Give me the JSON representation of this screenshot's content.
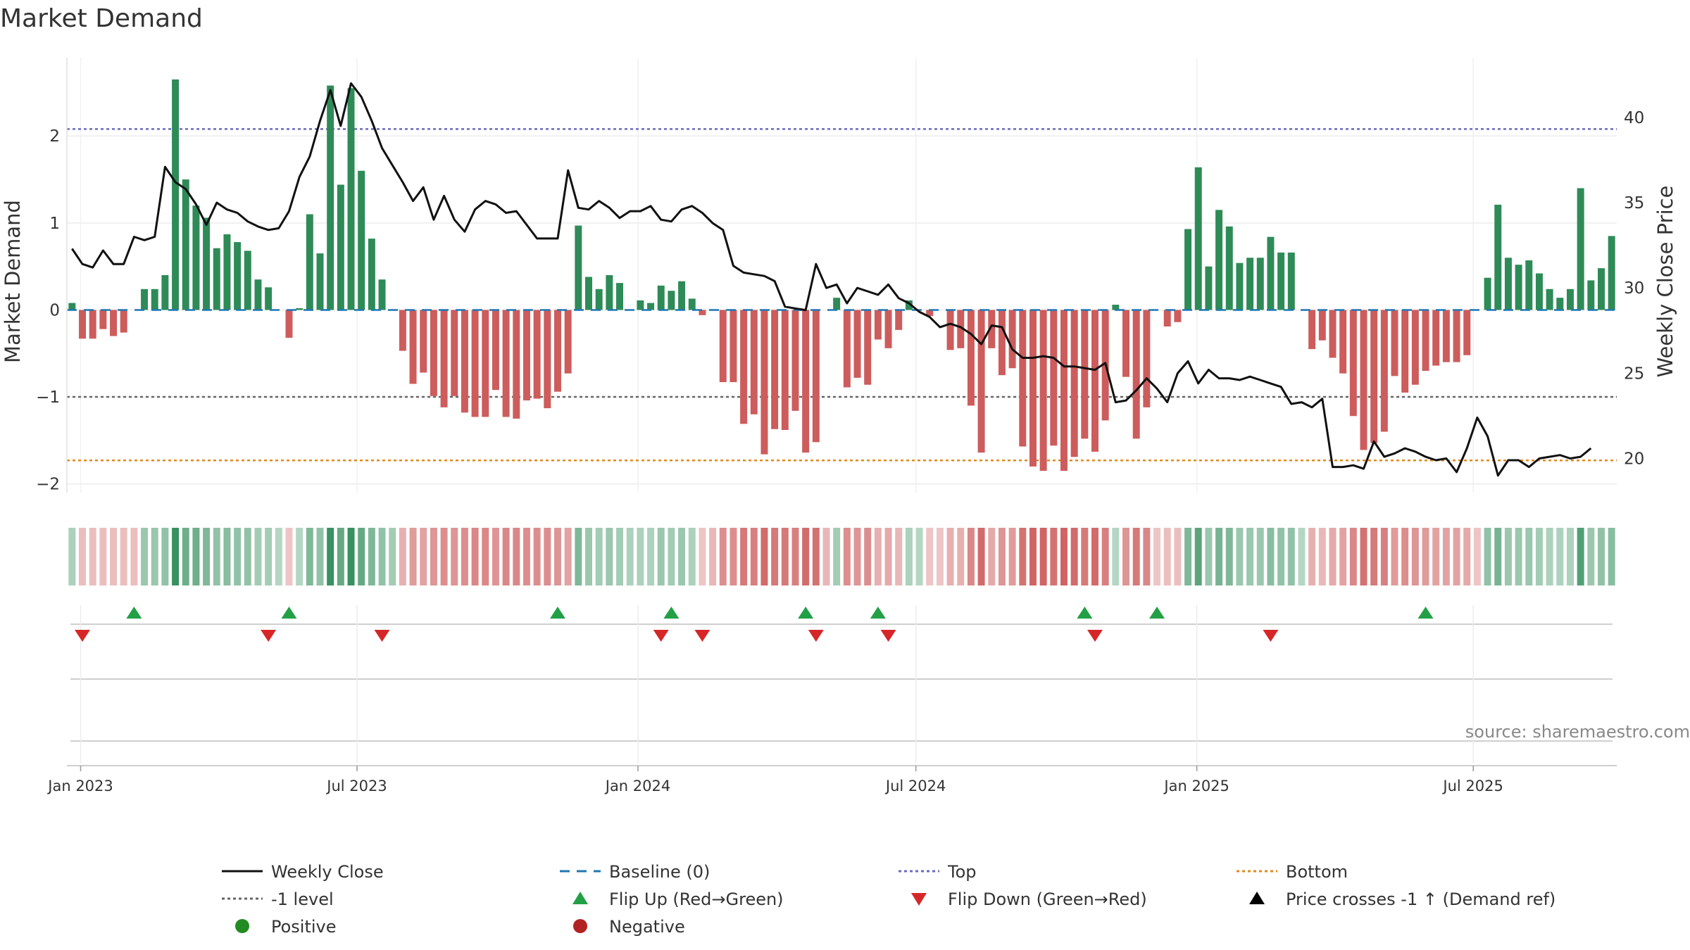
{
  "title": "Market Demand",
  "source": "source: sharemaestro.com",
  "colors": {
    "bar_positive": "#2e8b57",
    "bar_negative": "#cd5c5c",
    "price_line": "#111111",
    "baseline": "#1f77b4",
    "top_line": "#6b6bbf",
    "minus_one_line": "#666666",
    "bottom_line": "#e08a1e",
    "flip_up": "#22a046",
    "flip_down": "#d62728",
    "positive_dot": "#228b22",
    "negative_dot": "#b22222",
    "price_cross": "#000000"
  },
  "chart_data": {
    "type": "bar",
    "title": "Market Demand",
    "xlabel": "",
    "ylabel": "Market Demand",
    "y2label": "Weekly Close Price",
    "ylim": [
      -2.1,
      2.9
    ],
    "y2lim": [
      18,
      43.5
    ],
    "yticks": [
      "2",
      "1",
      "0",
      "−1",
      "−2"
    ],
    "yticks_values": [
      2,
      1,
      0,
      -1,
      -2
    ],
    "y2ticks": [
      "40",
      "35",
      "30",
      "25",
      "20"
    ],
    "y2ticks_values": [
      40,
      35,
      30,
      25,
      20
    ],
    "x_start": "2022-12-23",
    "x_end": "2025-10-03",
    "xtick_labels": [
      "Jan 2023",
      "Jul 2023",
      "Jan 2024",
      "Jul 2024",
      "Jan 2025",
      "Jul 2025"
    ],
    "xtick_dates": [
      "2023-01-01",
      "2023-07-01",
      "2024-01-01",
      "2024-07-01",
      "2025-01-01",
      "2025-07-01"
    ],
    "reference_lines": {
      "top": 2.08,
      "minus_one": -1.0,
      "bottom": -1.73,
      "baseline": 0
    },
    "series": [
      {
        "name": "Market Demand",
        "values": [
          0.08,
          -0.33,
          -0.33,
          -0.22,
          -0.3,
          -0.26,
          0.0,
          0.24,
          0.24,
          0.4,
          2.65,
          1.5,
          1.2,
          1.06,
          0.71,
          0.87,
          0.78,
          0.68,
          0.35,
          0.26,
          0.0,
          -0.32,
          0.02,
          1.1,
          0.65,
          2.58,
          1.44,
          2.55,
          1.6,
          0.82,
          0.35,
          0.0,
          -0.47,
          -0.85,
          -0.72,
          -0.99,
          -1.12,
          -0.99,
          -1.18,
          -1.23,
          -1.23,
          -0.92,
          -1.23,
          -1.25,
          -1.04,
          -1.02,
          -1.13,
          -0.94,
          -0.73,
          0.97,
          0.38,
          0.24,
          0.4,
          0.31,
          0.0,
          0.11,
          0.08,
          0.28,
          0.22,
          0.33,
          0.13,
          -0.06,
          0.0,
          -0.83,
          -0.83,
          -1.31,
          -1.2,
          -1.66,
          -1.37,
          -1.38,
          -1.16,
          -1.64,
          -1.52,
          0.0,
          0.14,
          -0.89,
          -0.78,
          -0.86,
          -0.34,
          -0.44,
          -0.23,
          0.11,
          0.0,
          -0.07,
          0.0,
          -0.46,
          -0.44,
          -1.1,
          -1.64,
          -0.44,
          -0.75,
          -0.67,
          -1.57,
          -1.8,
          -1.85,
          -1.56,
          -1.85,
          -1.69,
          -1.48,
          -1.63,
          -1.27,
          0.06,
          -0.77,
          -1.48,
          -1.12,
          0.0,
          -0.19,
          -0.14,
          0.93,
          1.64,
          0.5,
          1.15,
          0.96,
          0.54,
          0.6,
          0.6,
          0.84,
          0.66,
          0.66,
          0.0,
          -0.45,
          -0.35,
          -0.55,
          -0.73,
          -1.22,
          -1.61,
          -1.53,
          -1.4,
          -0.76,
          -0.95,
          -0.86,
          -0.7,
          -0.64,
          -0.6,
          -0.6,
          -0.52,
          0.0,
          0.37,
          1.21,
          0.6,
          0.52,
          0.57,
          0.42,
          0.24,
          0.14,
          0.24,
          1.4,
          0.34,
          0.48,
          0.85
        ]
      },
      {
        "name": "Weekly Close",
        "axis": "secondary",
        "values": [
          32.3,
          31.4,
          31.2,
          32.2,
          31.4,
          31.4,
          33.0,
          32.8,
          33.0,
          37.1,
          36.2,
          35.8,
          34.9,
          33.7,
          35.0,
          34.6,
          34.4,
          33.9,
          33.6,
          33.4,
          33.5,
          34.5,
          36.5,
          37.7,
          39.8,
          41.6,
          39.5,
          42.0,
          41.2,
          39.8,
          38.2,
          37.2,
          36.2,
          35.1,
          35.9,
          34.0,
          35.4,
          34.0,
          33.3,
          34.6,
          35.1,
          34.9,
          34.4,
          34.5,
          33.7,
          32.9,
          32.9,
          32.9,
          36.9,
          34.7,
          34.6,
          35.1,
          34.7,
          34.1,
          34.5,
          34.5,
          34.8,
          34.0,
          33.9,
          34.6,
          34.8,
          34.4,
          33.8,
          33.4,
          31.3,
          30.9,
          30.8,
          30.7,
          30.4,
          28.9,
          28.8,
          28.7,
          31.4,
          30.0,
          30.2,
          29.1,
          30.0,
          29.8,
          29.6,
          30.2,
          29.4,
          29.1,
          28.6,
          28.3,
          27.7,
          27.9,
          27.7,
          27.3,
          26.7,
          27.8,
          27.7,
          26.4,
          25.9,
          25.9,
          26.0,
          25.9,
          25.4,
          25.4,
          25.3,
          25.2,
          25.6,
          23.3,
          23.4,
          24.0,
          24.7,
          24.1,
          23.3,
          25.0,
          25.7,
          24.4,
          25.2,
          24.7,
          24.7,
          24.6,
          24.8,
          24.6,
          24.4,
          24.2,
          23.2,
          23.3,
          23.0,
          23.5,
          19.5,
          19.5,
          19.6,
          19.4,
          21.0,
          20.1,
          20.3,
          20.6,
          20.4,
          20.1,
          19.9,
          20.0,
          19.2,
          20.6,
          22.4,
          21.3,
          19.0,
          19.9,
          19.9,
          19.5,
          20.0,
          20.1,
          20.2,
          20.0,
          20.1,
          20.6
        ]
      }
    ],
    "baseline_series": {
      "name": "Baseline (0)",
      "value": 0
    },
    "strip_intensity": [
      0.35,
      0.35,
      0.35,
      0.35,
      0.35,
      0.35,
      0.35,
      0.45,
      0.45,
      0.5,
      1.0,
      0.7,
      0.7,
      0.6,
      0.5,
      0.55,
      0.5,
      0.5,
      0.4,
      0.4,
      0.3,
      0.3,
      0.3,
      0.6,
      0.5,
      1.0,
      0.75,
      1.0,
      0.75,
      0.6,
      0.5,
      0.4,
      0.45,
      0.6,
      0.55,
      0.65,
      0.7,
      0.65,
      0.7,
      0.75,
      0.75,
      0.65,
      0.75,
      0.75,
      0.7,
      0.7,
      0.7,
      0.65,
      0.55,
      0.6,
      0.45,
      0.4,
      0.45,
      0.4,
      0.35,
      0.35,
      0.35,
      0.45,
      0.4,
      0.45,
      0.35,
      0.3,
      0.4,
      0.7,
      0.7,
      0.85,
      0.8,
      0.95,
      0.85,
      0.85,
      0.8,
      0.95,
      0.9,
      0.4,
      0.4,
      0.7,
      0.65,
      0.7,
      0.45,
      0.5,
      0.4,
      0.35,
      0.3,
      0.3,
      0.3,
      0.45,
      0.45,
      0.75,
      0.95,
      0.5,
      0.65,
      0.6,
      0.9,
      1.0,
      1.0,
      0.9,
      1.0,
      0.95,
      0.85,
      0.95,
      0.8,
      0.3,
      0.65,
      0.85,
      0.75,
      0.3,
      0.35,
      0.35,
      0.6,
      0.8,
      0.45,
      0.65,
      0.6,
      0.45,
      0.45,
      0.45,
      0.55,
      0.5,
      0.5,
      0.3,
      0.45,
      0.4,
      0.5,
      0.55,
      0.75,
      0.9,
      0.85,
      0.8,
      0.6,
      0.7,
      0.65,
      0.6,
      0.55,
      0.55,
      0.55,
      0.5,
      0.3,
      0.5,
      0.65,
      0.45,
      0.45,
      0.45,
      0.4,
      0.35,
      0.35,
      0.35,
      0.85,
      0.45,
      0.5,
      0.55
    ],
    "flip_up_weeks": [
      6,
      21,
      47,
      58,
      71,
      78,
      98,
      105,
      131
    ],
    "flip_down_weeks": [
      1,
      19,
      30,
      57,
      61,
      72,
      79,
      99,
      116
    ],
    "legend": [
      {
        "label": "Weekly Close",
        "kind": "line-solid",
        "color": "#111111"
      },
      {
        "label": "Baseline (0)",
        "kind": "line-dash",
        "color": "#1f77b4"
      },
      {
        "label": "Top",
        "kind": "line-dot",
        "color": "#6b6bbf"
      },
      {
        "label": "Bottom",
        "kind": "line-dot",
        "color": "#e08a1e"
      },
      {
        "label": "-1 level",
        "kind": "line-dot",
        "color": "#666666"
      },
      {
        "label": "Flip Up (Red→Green)",
        "kind": "tri-up",
        "color": "#22a046"
      },
      {
        "label": "Flip Down (Green→Red)",
        "kind": "tri-down",
        "color": "#d62728"
      },
      {
        "label": "Price crosses -1 ↑ (Demand ref)",
        "kind": "tri-up",
        "color": "#000000"
      },
      {
        "label": "Positive",
        "kind": "dot",
        "color": "#228b22"
      },
      {
        "label": "Negative",
        "kind": "dot",
        "color": "#b22222"
      }
    ],
    "legend_position": "bottom"
  }
}
